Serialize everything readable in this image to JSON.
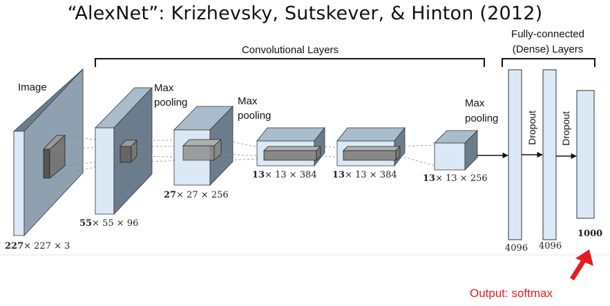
{
  "title": "“AlexNet”: Krizhevsky, Sutskever, & Hinton (2012)",
  "groups": {
    "conv": "Convolutional Layers",
    "fc_line1": "Fully-connected",
    "fc_line2": "(Dense) Layers"
  },
  "labels": {
    "image": "Image",
    "max1a": "Max",
    "max1b": "pooling",
    "max2a": "Max",
    "max2b": "pooling",
    "max3a": "Max",
    "max3b": "pooling",
    "dropout1": "Dropout",
    "dropout2": "Dropout"
  },
  "dims": {
    "input_b": "227",
    "input_r": "× 227 × 3",
    "conv1_b": "55",
    "conv1_r": "× 55 × 96",
    "conv2_b": "27",
    "conv2_r": "× 27 × 256",
    "conv3_b": "13",
    "conv3_r": "× 13 × 384",
    "conv4_b": "13",
    "conv4_r": "× 13 × 384",
    "conv5_b": "13",
    "conv5_r": "× 13 × 256",
    "fc1": "4096",
    "fc2": "4096",
    "fc3": "1000"
  },
  "output_label": "Output: softmax",
  "colors": {
    "block_front": "#dbe9f6",
    "block_side": "#6b7d8c",
    "block_top": "#a9bccb",
    "inner_box": "#7a7a7a",
    "arrow_red": "#e81c1c"
  }
}
